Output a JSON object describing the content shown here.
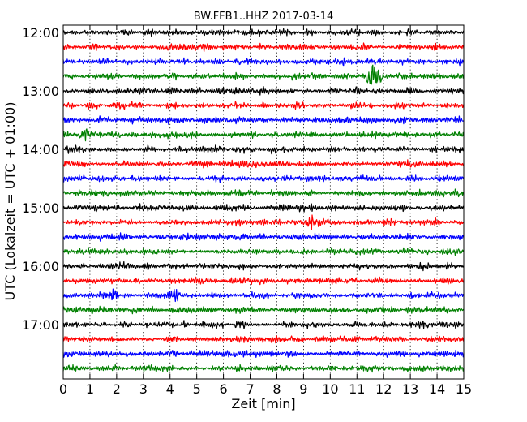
{
  "chart_data": {
    "type": "line",
    "title": "BW.FFB1..HHZ 2017-03-14",
    "xlabel": "Zeit  [min]",
    "ylabel": "UTC (Lokalzeit = UTC + 01:00)",
    "xlim": [
      0,
      15
    ],
    "x_ticks": [
      0,
      1,
      2,
      3,
      4,
      5,
      6,
      7,
      8,
      9,
      10,
      11,
      12,
      13,
      14,
      15
    ],
    "x_tick_labels": [
      "0",
      "1",
      "2",
      "3",
      "4",
      "5",
      "6",
      "7",
      "8",
      "9",
      "10",
      "11",
      "12",
      "13",
      "14",
      "15"
    ],
    "y_tick_labels": [
      "12:00",
      "13:00",
      "14:00",
      "15:00",
      "16:00",
      "17:00"
    ],
    "grid": true,
    "trace_colors": [
      "#000000",
      "#ff0000",
      "#0000ff",
      "#008000"
    ],
    "traces": [
      "12:00",
      "12:15",
      "12:30",
      "12:45",
      "13:00",
      "13:15",
      "13:30",
      "13:45",
      "14:00",
      "14:15",
      "14:30",
      "14:45",
      "15:00",
      "15:15",
      "15:30",
      "15:45",
      "16:00",
      "16:15",
      "16:30",
      "16:45",
      "17:00",
      "17:15",
      "17:30",
      "17:45"
    ],
    "events": [
      {
        "trace": "12:45",
        "minute": 11.55,
        "amplitude": 2.6
      },
      {
        "trace": "12:45",
        "minute": 11.85,
        "amplitude": 0.9
      },
      {
        "trace": "15:15",
        "minute": 9.3,
        "amplitude": 1.2
      },
      {
        "trace": "16:30",
        "minute": 4.2,
        "amplitude": 1.1
      },
      {
        "trace": "16:30",
        "minute": 1.9,
        "amplitude": 1.0
      },
      {
        "trace": "13:45",
        "minute": 0.8,
        "amplitude": 1.0
      }
    ]
  }
}
